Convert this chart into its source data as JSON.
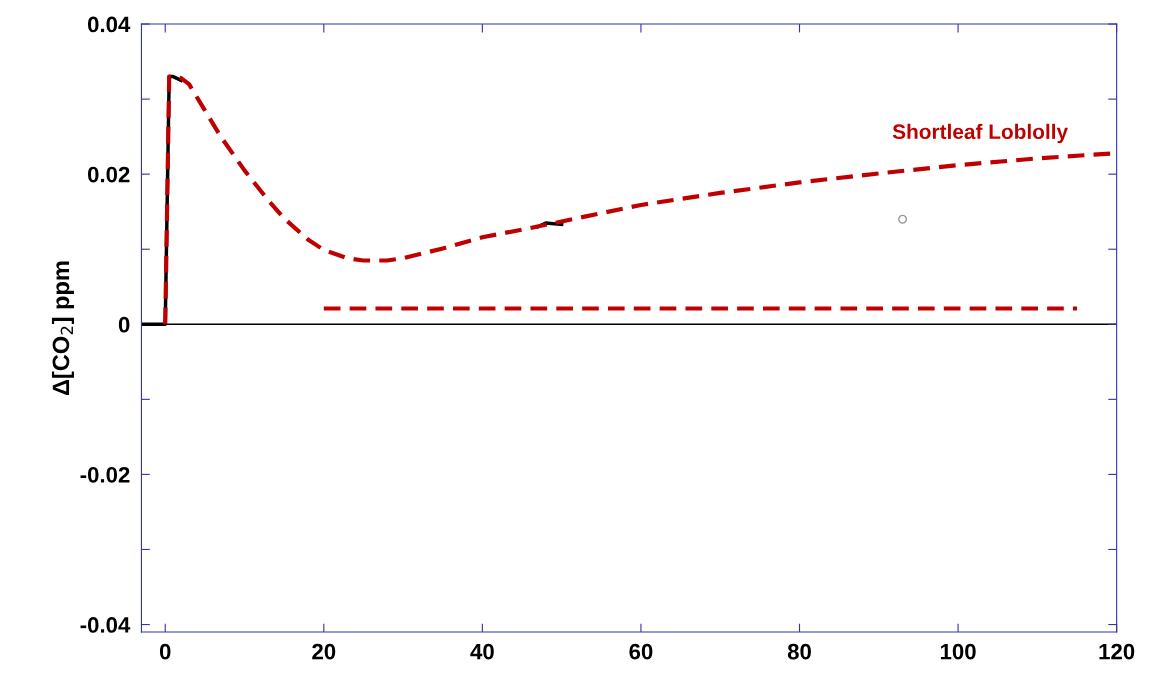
{
  "chart_data": {
    "type": "line",
    "ylabel": "Δ[CO$_{2}$] ppm",
    "xlim": [
      -3,
      120
    ],
    "xticks": [
      0,
      20,
      40,
      60,
      80,
      100,
      120
    ],
    "ylim": [
      -0.041,
      0.04
    ],
    "yticks": [
      -0.04,
      {
        "value": -0.03,
        "label": null
      },
      -0.02,
      {
        "value": -0.01,
        "label": null
      },
      0,
      {
        "value": 0.01,
        "label": null
      },
      0.02,
      {
        "value": 0.03,
        "label": null
      },
      0.04
    ],
    "grid": false,
    "legend": false,
    "ref_lines": [
      {
        "axis": "y",
        "value": 0,
        "color": "#000000",
        "line_style": "solid"
      }
    ],
    "series": [
      {
        "color": "#000000",
        "line_style": "solid",
        "x": [
          -3,
          0,
          0.5,
          1,
          2,
          null,
          47,
          48,
          50
        ],
        "values": [
          0,
          0,
          0.033,
          0.033,
          0.0325,
          null,
          0.013,
          0.0135,
          0.0133
        ]
      },
      {
        "name": "Shortleaf Loblolly",
        "color": "#c00000",
        "line_style": "dashed",
        "x": [
          0,
          0.5,
          1,
          2,
          3,
          5,
          7,
          10,
          13,
          15,
          18,
          20,
          23,
          25,
          28,
          30,
          35,
          40,
          45,
          50,
          60,
          70,
          80,
          90,
          100,
          110,
          120
        ],
        "values": [
          0,
          0.033,
          0.033,
          0.0328,
          0.032,
          0.0285,
          0.025,
          0.0205,
          0.0165,
          0.0141,
          0.0113,
          0.0099,
          0.0088,
          0.0085,
          0.0085,
          0.0088,
          0.0101,
          0.0116,
          0.0126,
          0.0137,
          0.0159,
          0.0175,
          0.0189,
          0.0201,
          0.0212,
          0.0221,
          0.0228
        ]
      },
      {
        "color": "#c00000",
        "line_style": "dashed",
        "x": [
          20,
          115
        ],
        "values": [
          0.0021,
          0.0021
        ]
      },
      {
        "type": "scatter",
        "color": "#999999",
        "marker": "circle",
        "x": [
          93
        ],
        "values": [
          0.014
        ]
      }
    ]
  }
}
